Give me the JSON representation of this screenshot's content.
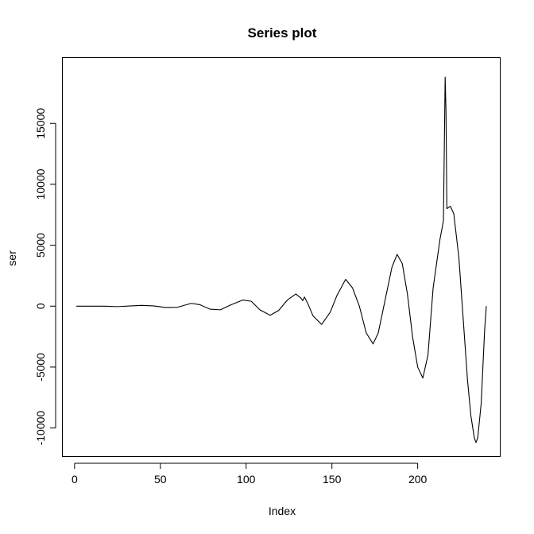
{
  "chart_data": {
    "type": "line",
    "title": "Series plot",
    "xlabel": "Index",
    "ylabel": "ser",
    "xlim": [
      1,
      240
    ],
    "ylim": [
      -12000,
      19000
    ],
    "x_ticks": [
      0,
      50,
      100,
      150,
      200
    ],
    "x_tick_labels": [
      "0",
      "50",
      "100",
      "150",
      "200"
    ],
    "y_ticks": [
      -10000,
      -5000,
      0,
      5000,
      10000,
      15000
    ],
    "y_tick_labels": [
      "-10000",
      "-5000",
      "0",
      "5000",
      "10000",
      "15000"
    ],
    "grid": false,
    "series": [
      {
        "color": "#000000",
        "points": [
          [
            1,
            0
          ],
          [
            10,
            0
          ],
          [
            18,
            -5
          ],
          [
            25,
            -40
          ],
          [
            32,
            10
          ],
          [
            39,
            60
          ],
          [
            46,
            20
          ],
          [
            53,
            -110
          ],
          [
            60,
            -90
          ],
          [
            68,
            230
          ],
          [
            73,
            120
          ],
          [
            79,
            -250
          ],
          [
            85,
            -300
          ],
          [
            91,
            100
          ],
          [
            98,
            500
          ],
          [
            103,
            400
          ],
          [
            108,
            -300
          ],
          [
            114,
            -750
          ],
          [
            119,
            -350
          ],
          [
            124,
            500
          ],
          [
            129,
            1000
          ],
          [
            132,
            650
          ],
          [
            133,
            450
          ],
          [
            134,
            750
          ],
          [
            136,
            200
          ],
          [
            139,
            -800
          ],
          [
            144,
            -1500
          ],
          [
            149,
            -500
          ],
          [
            153,
            900
          ],
          [
            158,
            2200
          ],
          [
            162,
            1500
          ],
          [
            166,
            0
          ],
          [
            170,
            -2200
          ],
          [
            174,
            -3100
          ],
          [
            177,
            -2200
          ],
          [
            181,
            500
          ],
          [
            185,
            3200
          ],
          [
            188,
            4250
          ],
          [
            191,
            3500
          ],
          [
            194,
            1000
          ],
          [
            197,
            -2500
          ],
          [
            200,
            -5000
          ],
          [
            203,
            -5900
          ],
          [
            206,
            -4000
          ],
          [
            209,
            1500
          ],
          [
            213,
            5500
          ],
          [
            215,
            7000
          ],
          [
            216,
            18800
          ],
          [
            216.5,
            16000
          ],
          [
            217,
            8000
          ],
          [
            218,
            8100
          ],
          [
            219,
            8200
          ],
          [
            221,
            7600
          ],
          [
            224,
            4000
          ],
          [
            227,
            -2000
          ],
          [
            229,
            -6000
          ],
          [
            231,
            -9000
          ],
          [
            233,
            -10800
          ],
          [
            234,
            -11200
          ],
          [
            235,
            -10800
          ],
          [
            237,
            -8000
          ],
          [
            238,
            -5000
          ],
          [
            239,
            -2000
          ],
          [
            240,
            0
          ]
        ]
      }
    ]
  }
}
